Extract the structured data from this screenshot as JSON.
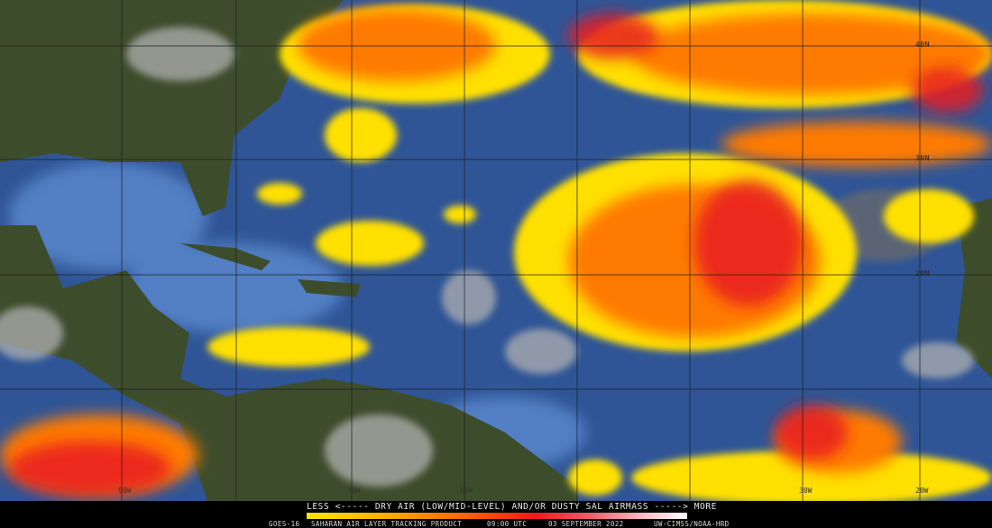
{
  "product": {
    "satellite": "GOES-16",
    "name": "SAHARAN AIR LAYER TRACKING PRODUCT",
    "time": "09:00 UTC",
    "date": "03 SEPTEMBER 2022",
    "credit": "UW-CIMSS/NOAA-HRD"
  },
  "legend": {
    "title": "LESS <----- DRY AIR (LOW/MID-LEVEL) AND/OR DUSTY SAL AIRMASS -----> MORE",
    "colors": [
      "#ffe600",
      "#ffb000",
      "#ff6a00",
      "#f01818",
      "#f06070",
      "#f8b8c0",
      "#ffffff"
    ]
  },
  "map": {
    "latitude_labels": [
      "40N",
      "30N",
      "20N"
    ],
    "longitude_labels": [
      "90W",
      "70W",
      "60W",
      "30W",
      "20W"
    ],
    "colors": {
      "ocean": "#2f5596",
      "land": "#3d4d2c",
      "cloud": "#a8a8a8"
    }
  }
}
